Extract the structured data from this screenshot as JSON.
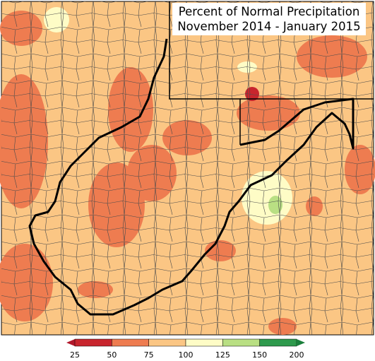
{
  "title": {
    "line1": "Percent of Normal Precipitation",
    "line2": "November 2014 - January 2015"
  },
  "colors": {
    "below25": "#b2182b",
    "p25_50": "#c8252d",
    "p50_75": "#ee7c50",
    "p75_100": "#fbc684",
    "p100_125": "#fefcc6",
    "p125_150": "#b9df83",
    "p150_200": "#2e9a4d",
    "border": "#000000",
    "county": "#4a4a4a"
  },
  "legend": {
    "ticks": [
      "25",
      "50",
      "75",
      "100",
      "125",
      "150",
      "200"
    ],
    "swatch_colors": [
      "#c8252d",
      "#ee7c50",
      "#fbc684",
      "#fefcc6",
      "#b9df83",
      "#2e9a4d"
    ]
  }
}
